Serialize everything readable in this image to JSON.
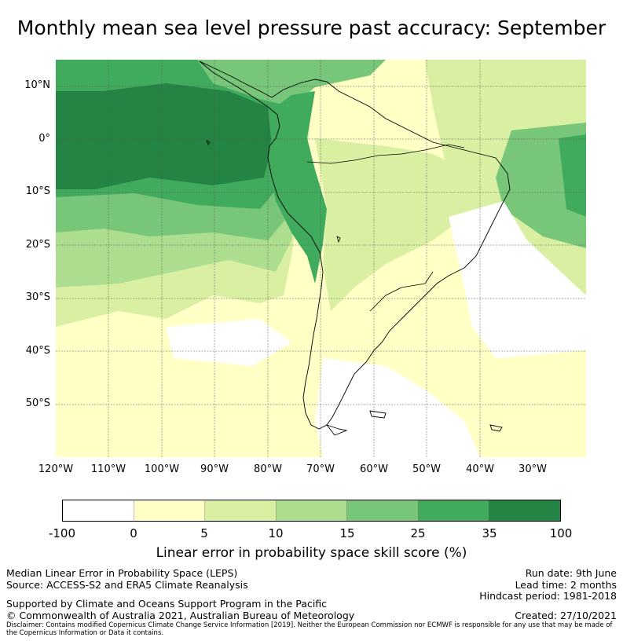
{
  "title": "Monthly mean sea level pressure past accuracy: September",
  "map": {
    "lat_ticks": [
      "10°N",
      "0°",
      "10°S",
      "20°S",
      "30°S",
      "40°S",
      "50°S"
    ],
    "lon_ticks": [
      "120°W",
      "110°W",
      "100°W",
      "90°W",
      "80°W",
      "70°W",
      "60°W",
      "50°W",
      "40°W",
      "30°W"
    ],
    "lon_range": [
      -120,
      -20
    ],
    "lat_range": [
      -60,
      15
    ],
    "gridlines": true,
    "category_colors": [
      "#ffffff",
      "#ffffc6",
      "#d9f0a3",
      "#addd8e",
      "#78c679",
      "#41ab5d",
      "#238443"
    ]
  },
  "colorbar": {
    "boundaries": [
      "-100",
      "0",
      "5",
      "10",
      "15",
      "25",
      "35",
      "100"
    ],
    "label": "Linear error in probability space skill score (%)"
  },
  "footer": {
    "left": [
      "Median Linear Error in Probability Space (LEPS)",
      "Source: ACCESS-S2 and ERA5 Climate Reanalysis",
      "Supported by Climate and Oceans Support Program in the Pacific",
      "© Commonwealth of Australia 2021, Australian Bureau of Meteorology"
    ],
    "right": [
      "Run date: 9th June",
      "Lead time: 2 months",
      "Hindcast period: 1981-2018",
      "Created: 27/10/2021"
    ],
    "disclaimer": "Disclaimer: Contains modified Copernicus Climate Change Service Information [2019]. Neither the European Commission nor ECMWF is responsible for any use that may be made of the Copernicus Information or Data it contains."
  }
}
